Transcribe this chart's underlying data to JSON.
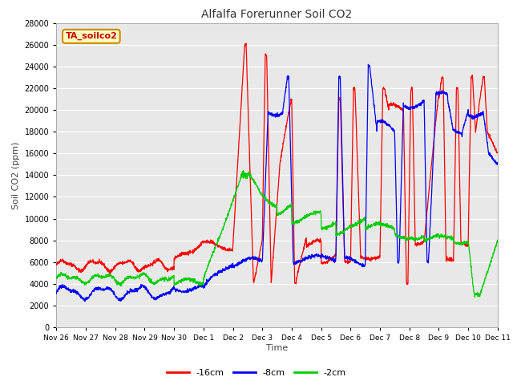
{
  "title": "Alfalfa Forerunner Soil CO2",
  "xlabel": "Time",
  "ylabel": "Soil CO2 (ppm)",
  "annotation": "TA_soilco2",
  "ylim": [
    0,
    28000
  ],
  "yticks": [
    0,
    2000,
    4000,
    6000,
    8000,
    10000,
    12000,
    14000,
    16000,
    18000,
    20000,
    22000,
    24000,
    26000,
    28000
  ],
  "xtick_labels": [
    "Nov 26",
    "Nov 27",
    "Nov 28",
    "Nov 29",
    "Nov 30",
    "Dec 1",
    "Dec 2",
    "Dec 3",
    "Dec 4",
    "Dec 5",
    "Dec 6",
    "Dec 7",
    "Dec 8",
    "Dec 9",
    "Dec 10",
    "Dec 11"
  ],
  "colors": {
    "red": "#FF0000",
    "blue": "#0000FF",
    "green": "#00CC00",
    "fig_bg": "#FFFFFF",
    "plot_bg": "#E8E8E8",
    "grid": "#FFFFFF",
    "annotation_bg": "#FFFFC0",
    "annotation_border": "#CC8800",
    "annotation_text": "#CC0000"
  },
  "legend": [
    {
      "label": "-16cm",
      "color": "#FF0000"
    },
    {
      "label": "-8cm",
      "color": "#0000FF"
    },
    {
      "label": "-2cm",
      "color": "#00CC00"
    }
  ]
}
